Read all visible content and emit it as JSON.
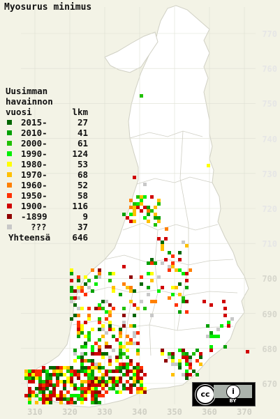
{
  "map": {
    "title": "Myosurus minimus",
    "legend": {
      "heading_lines": [
        "Uusimman",
        "havainnon"
      ],
      "col_year": "vuosi",
      "col_count": "lkm",
      "rows": [
        {
          "label": "2015-",
          "count": "27",
          "color": "#006600"
        },
        {
          "label": "2010-",
          "count": "41",
          "color": "#00a000"
        },
        {
          "label": "2000-",
          "count": "61",
          "color": "#20c000"
        },
        {
          "label": "1990-",
          "count": "124",
          "color": "#00ee00"
        },
        {
          "label": "1980-",
          "count": "53",
          "color": "#ffff00"
        },
        {
          "label": "1970-",
          "count": "68",
          "color": "#ffc000"
        },
        {
          "label": "1960-",
          "count": "52",
          "color": "#ff8000"
        },
        {
          "label": "1950-",
          "count": "58",
          "color": "#ff3000"
        },
        {
          "label": "1900-",
          "count": "116",
          "color": "#d00000"
        },
        {
          "label": "-1899",
          "count": "9",
          "color": "#900000"
        },
        {
          "label": "???",
          "count": "37",
          "color": "#c8c8c8"
        }
      ],
      "total_label": "Yhteensä",
      "total_count": "646"
    },
    "y_axis_labels": [
      "770",
      "760",
      "750",
      "740",
      "730",
      "720",
      "710",
      "700",
      "690",
      "680",
      "670"
    ],
    "x_axis_labels": [
      "310",
      "320",
      "330",
      "340",
      "350",
      "360",
      "370"
    ],
    "license": {
      "cc": "cc",
      "by_icon": "i",
      "by_text": "BY"
    },
    "colors": {
      "background": "#f3f3e6",
      "land": "#ffffff",
      "grid": "#d8d8cc",
      "borders": "#bfbfbf"
    }
  }
}
